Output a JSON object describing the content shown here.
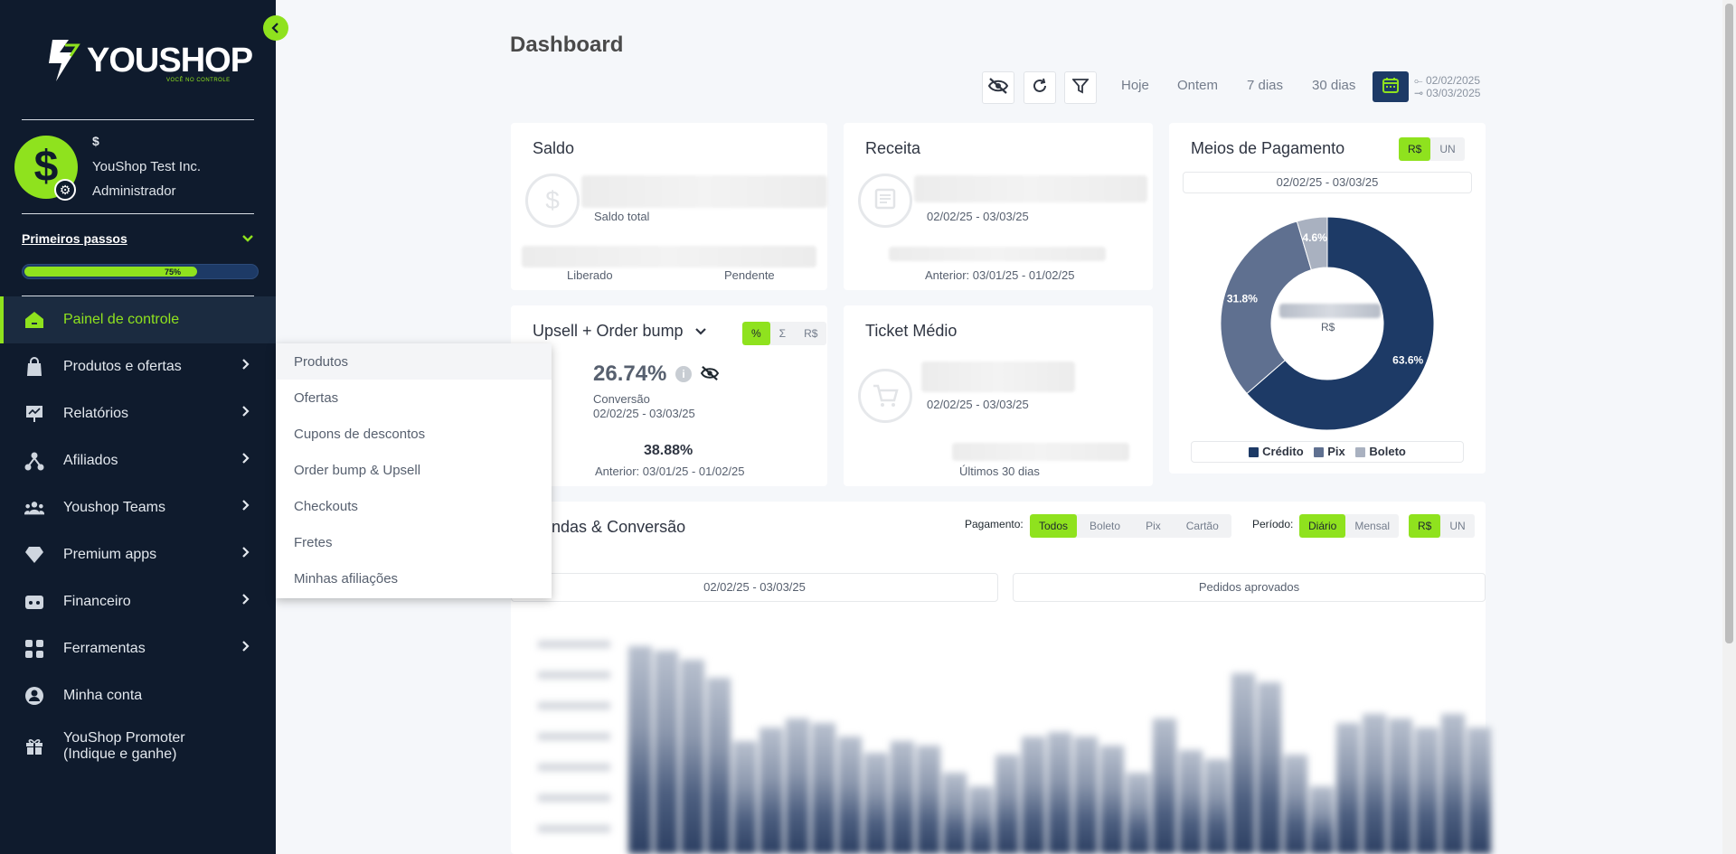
{
  "sidebar": {
    "logo_text": "YOUSHOP",
    "logo_sub": "VOCÊ NO CONTROLE",
    "avatar_symbol": "$",
    "user": {
      "currency": "$",
      "company": "YouShop Test Inc.",
      "role": "Administrador"
    },
    "first_steps": {
      "label": "Primeiros passos",
      "progress_percent": 75,
      "progress_label": "75%"
    },
    "items": [
      {
        "label": "Painel de controle",
        "icon": "home-icon",
        "active": true
      },
      {
        "label": "Produtos e ofertas",
        "icon": "bag-icon",
        "chevron": true
      },
      {
        "label": "Relatórios",
        "icon": "report-icon",
        "chevron": true
      },
      {
        "label": "Afiliados",
        "icon": "affiliates-icon",
        "chevron": true
      },
      {
        "label": "Youshop Teams",
        "icon": "team-icon",
        "chevron": true
      },
      {
        "label": "Premium apps",
        "icon": "diamond-icon",
        "chevron": true
      },
      {
        "label": "Financeiro",
        "icon": "wallet-icon",
        "chevron": true
      },
      {
        "label": "Ferramentas",
        "icon": "tools-icon",
        "chevron": true
      },
      {
        "label": "Minha conta",
        "icon": "user-icon"
      },
      {
        "label": "YouShop Promoter",
        "label2": "(Indique e ganhe)",
        "icon": "gift-icon"
      }
    ]
  },
  "submenu": [
    "Produtos",
    "Ofertas",
    "Cupons de descontos",
    "Order bump & Upsell",
    "Checkouts",
    "Fretes",
    "Minhas afiliações"
  ],
  "header": {
    "title": "Dashboard",
    "quick_ranges": [
      "Hoje",
      "Ontem",
      "7 dias",
      "30 dias"
    ],
    "date_start": "02/02/2025",
    "date_end": "03/03/2025"
  },
  "cards": {
    "saldo": {
      "title": "Saldo",
      "caption": "Saldo total",
      "liberado": "Liberado",
      "pendente": "Pendente"
    },
    "receita": {
      "title": "Receita",
      "period": "02/02/25 - 03/03/25",
      "previous": "Anterior: 03/01/25 - 01/02/25"
    },
    "upsell": {
      "title": "Upsell + Order bump",
      "tabs": [
        "%",
        "Σ",
        "R$"
      ],
      "value": "26.74%",
      "caption": "Conversão",
      "period": "02/02/25 - 03/03/25",
      "prev_value": "38.88%",
      "previous": "Anterior: 03/01/25 - 01/02/25"
    },
    "ticket": {
      "title": "Ticket Médio",
      "period": "02/02/25 - 03/03/25",
      "footer": "Últimos 30 dias"
    },
    "meios": {
      "title": "Meios de Pagamento",
      "tabs": [
        "R$",
        "UN"
      ],
      "period": "02/02/25 - 03/03/25",
      "center_label": "R$"
    }
  },
  "vendas": {
    "title": "Vendas & Conversão",
    "payment_label": "Pagamento:",
    "payment_tabs": [
      "Todos",
      "Boleto",
      "Pix",
      "Cartão"
    ],
    "period_label": "Período:",
    "period_tabs": [
      "Diário",
      "Mensal"
    ],
    "unit_tabs": [
      "R$",
      "UN"
    ],
    "range": "02/02/25 - 03/03/25",
    "orders": "Pedidos aprovados"
  },
  "chart_data": {
    "type": "pie",
    "categories": [
      "Crédito",
      "Pix",
      "Boleto"
    ],
    "values": [
      63.6,
      31.8,
      4.6
    ],
    "labels": [
      "63.6%",
      "31.8%",
      "4.6%"
    ],
    "colors": [
      "#1d3a66",
      "#5f7090",
      "#a9b1c0"
    ],
    "legend": "bottom"
  },
  "colors": {
    "accent": "#8fe21e",
    "sidebar": "#0f1b2d",
    "navy": "#1d3a66"
  }
}
